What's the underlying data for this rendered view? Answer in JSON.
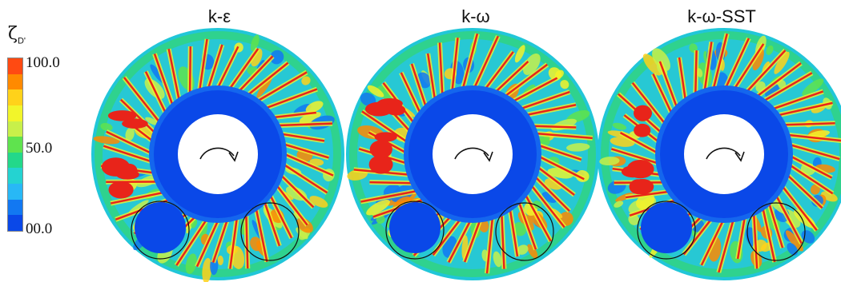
{
  "legend": {
    "symbol": "ζ",
    "symbol_subscript": "D'",
    "tick_labels": [
      "100.0",
      "50.0",
      "00.0"
    ],
    "colors": [
      "#ff4a12",
      "#ff8a00",
      "#ffd21a",
      "#f2f52a",
      "#c8f04a",
      "#5fe34e",
      "#23d88a",
      "#24d3d1",
      "#28b8f6",
      "#1278f2",
      "#0a48e8"
    ]
  },
  "panels": [
    {
      "title": "k-ε"
    },
    {
      "title": "k-ω"
    },
    {
      "title": "k-ω-SST"
    }
  ]
}
